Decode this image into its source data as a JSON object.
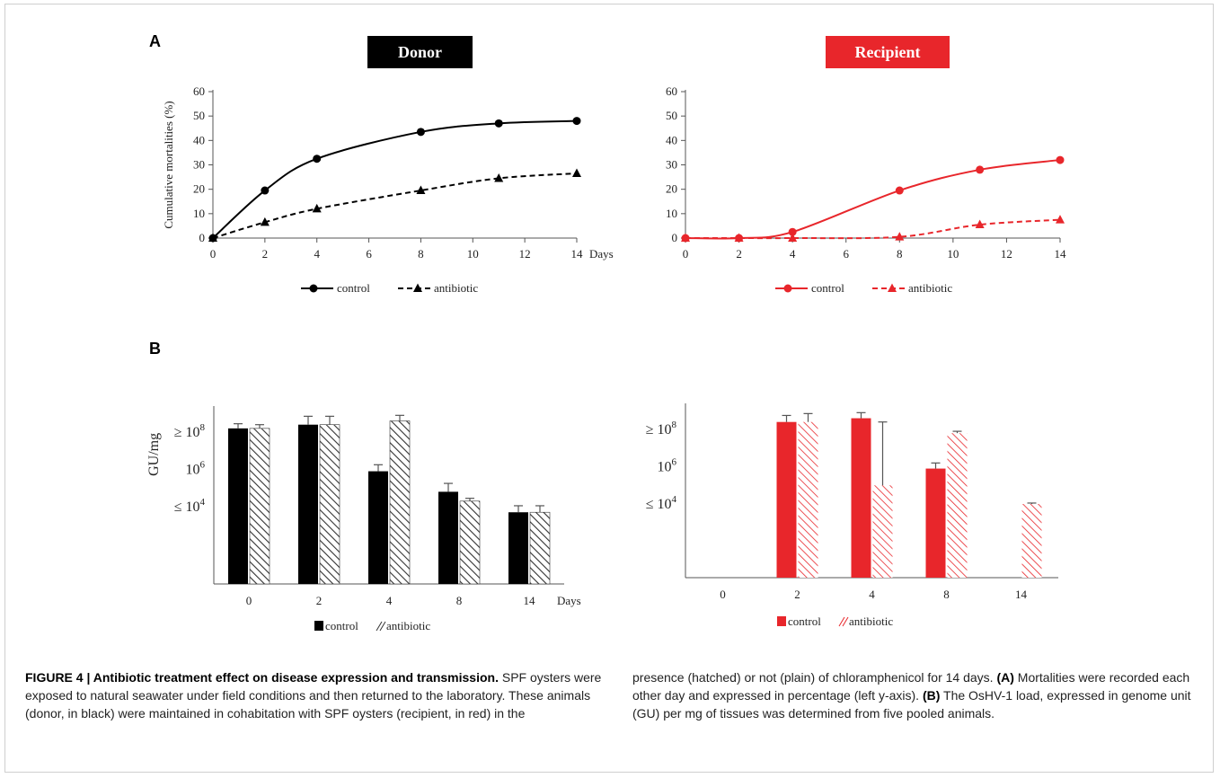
{
  "panel_labels": {
    "a": "A",
    "b": "B"
  },
  "colors": {
    "donor": "#000000",
    "recipient": "#e8262b",
    "hatch_donor": "#333333",
    "hatch_recipient": "#e8262b",
    "axis": "#555555"
  },
  "chart_data": [
    {
      "id": "donor-mortality",
      "type": "line",
      "title": "Donor",
      "ylabel": "Cumulative mortalities (%)",
      "xlabel": "Days",
      "x": [
        0,
        2,
        4,
        8,
        11,
        14
      ],
      "xticks": [
        "0",
        "2",
        "4",
        "6",
        "8",
        "10",
        "12",
        "14"
      ],
      "yticks": [
        "0",
        "10",
        "20",
        "30",
        "40",
        "50",
        "60"
      ],
      "xlim": [
        0,
        14
      ],
      "ylim": [
        0,
        60
      ],
      "series": [
        {
          "name": "control",
          "marker": "circle",
          "dash": "solid",
          "values": [
            0,
            19.5,
            32.5,
            43.5,
            47,
            48
          ]
        },
        {
          "name": "antibiotic",
          "marker": "triangle",
          "dash": "dashed",
          "values": [
            0,
            6.5,
            12,
            19.5,
            24.5,
            26.5
          ]
        }
      ],
      "legend_position": "bottom"
    },
    {
      "id": "recipient-mortality",
      "type": "line",
      "title": "Recipient",
      "ylabel": "",
      "xlabel": "",
      "x": [
        0,
        2,
        4,
        8,
        11,
        14
      ],
      "xticks": [
        "0",
        "2",
        "4",
        "6",
        "8",
        "10",
        "12",
        "14"
      ],
      "yticks": [
        "0",
        "10",
        "20",
        "30",
        "40",
        "50",
        "60"
      ],
      "xlim": [
        0,
        14
      ],
      "ylim": [
        0,
        60
      ],
      "series": [
        {
          "name": "control",
          "marker": "circle",
          "dash": "solid",
          "values": [
            0,
            0,
            2.5,
            19.5,
            28,
            32
          ]
        },
        {
          "name": "antibiotic",
          "marker": "triangle",
          "dash": "dashed",
          "values": [
            0,
            0,
            0,
            0.5,
            5.5,
            7.5
          ]
        }
      ],
      "legend_position": "bottom"
    },
    {
      "id": "donor-load",
      "type": "bar",
      "ylabel": "GU/mg",
      "xlabel": "Days",
      "scale": "log10",
      "categories": [
        "0",
        "2",
        "4",
        "8",
        "14"
      ],
      "ytick_labels": [
        {
          "prefix": "≤ 10",
          "exp": "4",
          "log": 4
        },
        {
          "prefix": "10",
          "exp": "6",
          "log": 6
        },
        {
          "prefix": "≥ 10",
          "exp": "8",
          "log": 8
        }
      ],
      "log_min": 0.6,
      "series": [
        {
          "name": "control",
          "style": "solid",
          "log_values": [
            8.2,
            8.4,
            5.9,
            4.8,
            3.7
          ],
          "log_err": [
            0.25,
            0.45,
            0.35,
            0.45,
            0.35
          ]
        },
        {
          "name": "antibiotic",
          "style": "hatched",
          "log_values": [
            8.2,
            8.4,
            8.6,
            4.3,
            3.7
          ],
          "log_err": [
            0.2,
            0.45,
            0.3,
            0.15,
            0.35
          ]
        }
      ],
      "legend_position": "bottom"
    },
    {
      "id": "recipient-load",
      "type": "bar",
      "ylabel": "",
      "xlabel": "",
      "scale": "log10",
      "categories": [
        "0",
        "2",
        "4",
        "8",
        "14"
      ],
      "ytick_labels": [
        {
          "prefix": "≤ 10",
          "exp": "4",
          "log": 4
        },
        {
          "prefix": "10",
          "exp": "6",
          "log": 6
        },
        {
          "prefix": "≥ 10",
          "exp": "8",
          "log": 8
        }
      ],
      "log_min": 0.6,
      "series": [
        {
          "name": "control",
          "style": "solid",
          "log_values": [
            null,
            8.4,
            8.6,
            5.9,
            null
          ],
          "log_err": [
            0,
            0.35,
            0.3,
            0.3,
            0
          ]
        },
        {
          "name": "antibiotic",
          "style": "hatched",
          "log_values": [
            null,
            8.4,
            5.0,
            7.8,
            4.0
          ],
          "log_err": [
            0,
            0.45,
            3.4,
            0.1,
            0.05
          ]
        }
      ],
      "legend_position": "bottom"
    }
  ],
  "caption": {
    "left_title": "FIGURE 4 | Antibiotic treatment effect on disease expression and transmission.",
    "left_text": " SPF oysters were exposed to natural seawater under field conditions and then returned to the laboratory. These animals (donor, in black) were maintained in cohabitation with SPF oysters (recipient, in red) in the",
    "right_text_1": "presence (hatched) or not (plain) of chloramphenicol for 14 days. ",
    "right_a": "(A)",
    "right_text_2": " Mortalities were recorded each other day and expressed in percentage (left y-axis). ",
    "right_b": "(B)",
    "right_text_3": " The OsHV-1 load, expressed in genome unit (GU) per mg of tissues was determined from five pooled animals."
  }
}
